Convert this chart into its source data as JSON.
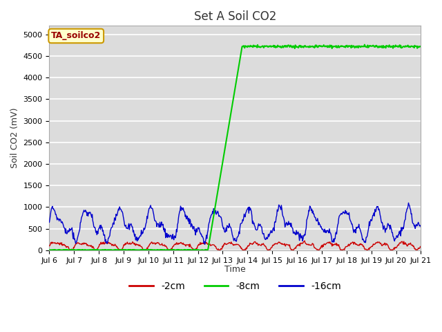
{
  "title": "Set A Soil CO2",
  "ylabel": "Soil CO2 (mV)",
  "xlabel": "Time",
  "annotation": "TA_soilco2",
  "ylim": [
    0,
    5200
  ],
  "yticks": [
    0,
    500,
    1000,
    1500,
    2000,
    2500,
    3000,
    3500,
    4000,
    4500,
    5000
  ],
  "xlim": [
    0,
    15
  ],
  "xtick_positions": [
    0,
    1,
    2,
    3,
    4,
    5,
    6,
    7,
    8,
    9,
    10,
    11,
    12,
    13,
    14,
    15
  ],
  "xtick_labels": [
    "Jul 6",
    "Jul 7",
    "Jul 8",
    "Jul 9",
    "Jul 10",
    "Jul 11",
    "Jul 12",
    "Jul 13",
    "Jul 14",
    "Jul 15",
    "Jul 16",
    "Jul 17",
    "Jul 18",
    "Jul 19",
    "Jul 20",
    "Jul 21"
  ],
  "series": {
    "2cm": {
      "color": "#cc0000",
      "label": "-2cm"
    },
    "8cm": {
      "color": "#00cc00",
      "label": "-8cm"
    },
    "16cm": {
      "color": "#0000cc",
      "label": "-16cm"
    }
  },
  "background_color": "#dcdcdc",
  "grid_color": "#ffffff",
  "fig_facecolor": "#ffffff",
  "title_fontsize": 12,
  "tick_fontsize": 8,
  "label_fontsize": 9,
  "legend_fontsize": 10,
  "annotation_facecolor": "#ffffcc",
  "annotation_edgecolor": "#cc9900",
  "annotation_textcolor": "#990000"
}
